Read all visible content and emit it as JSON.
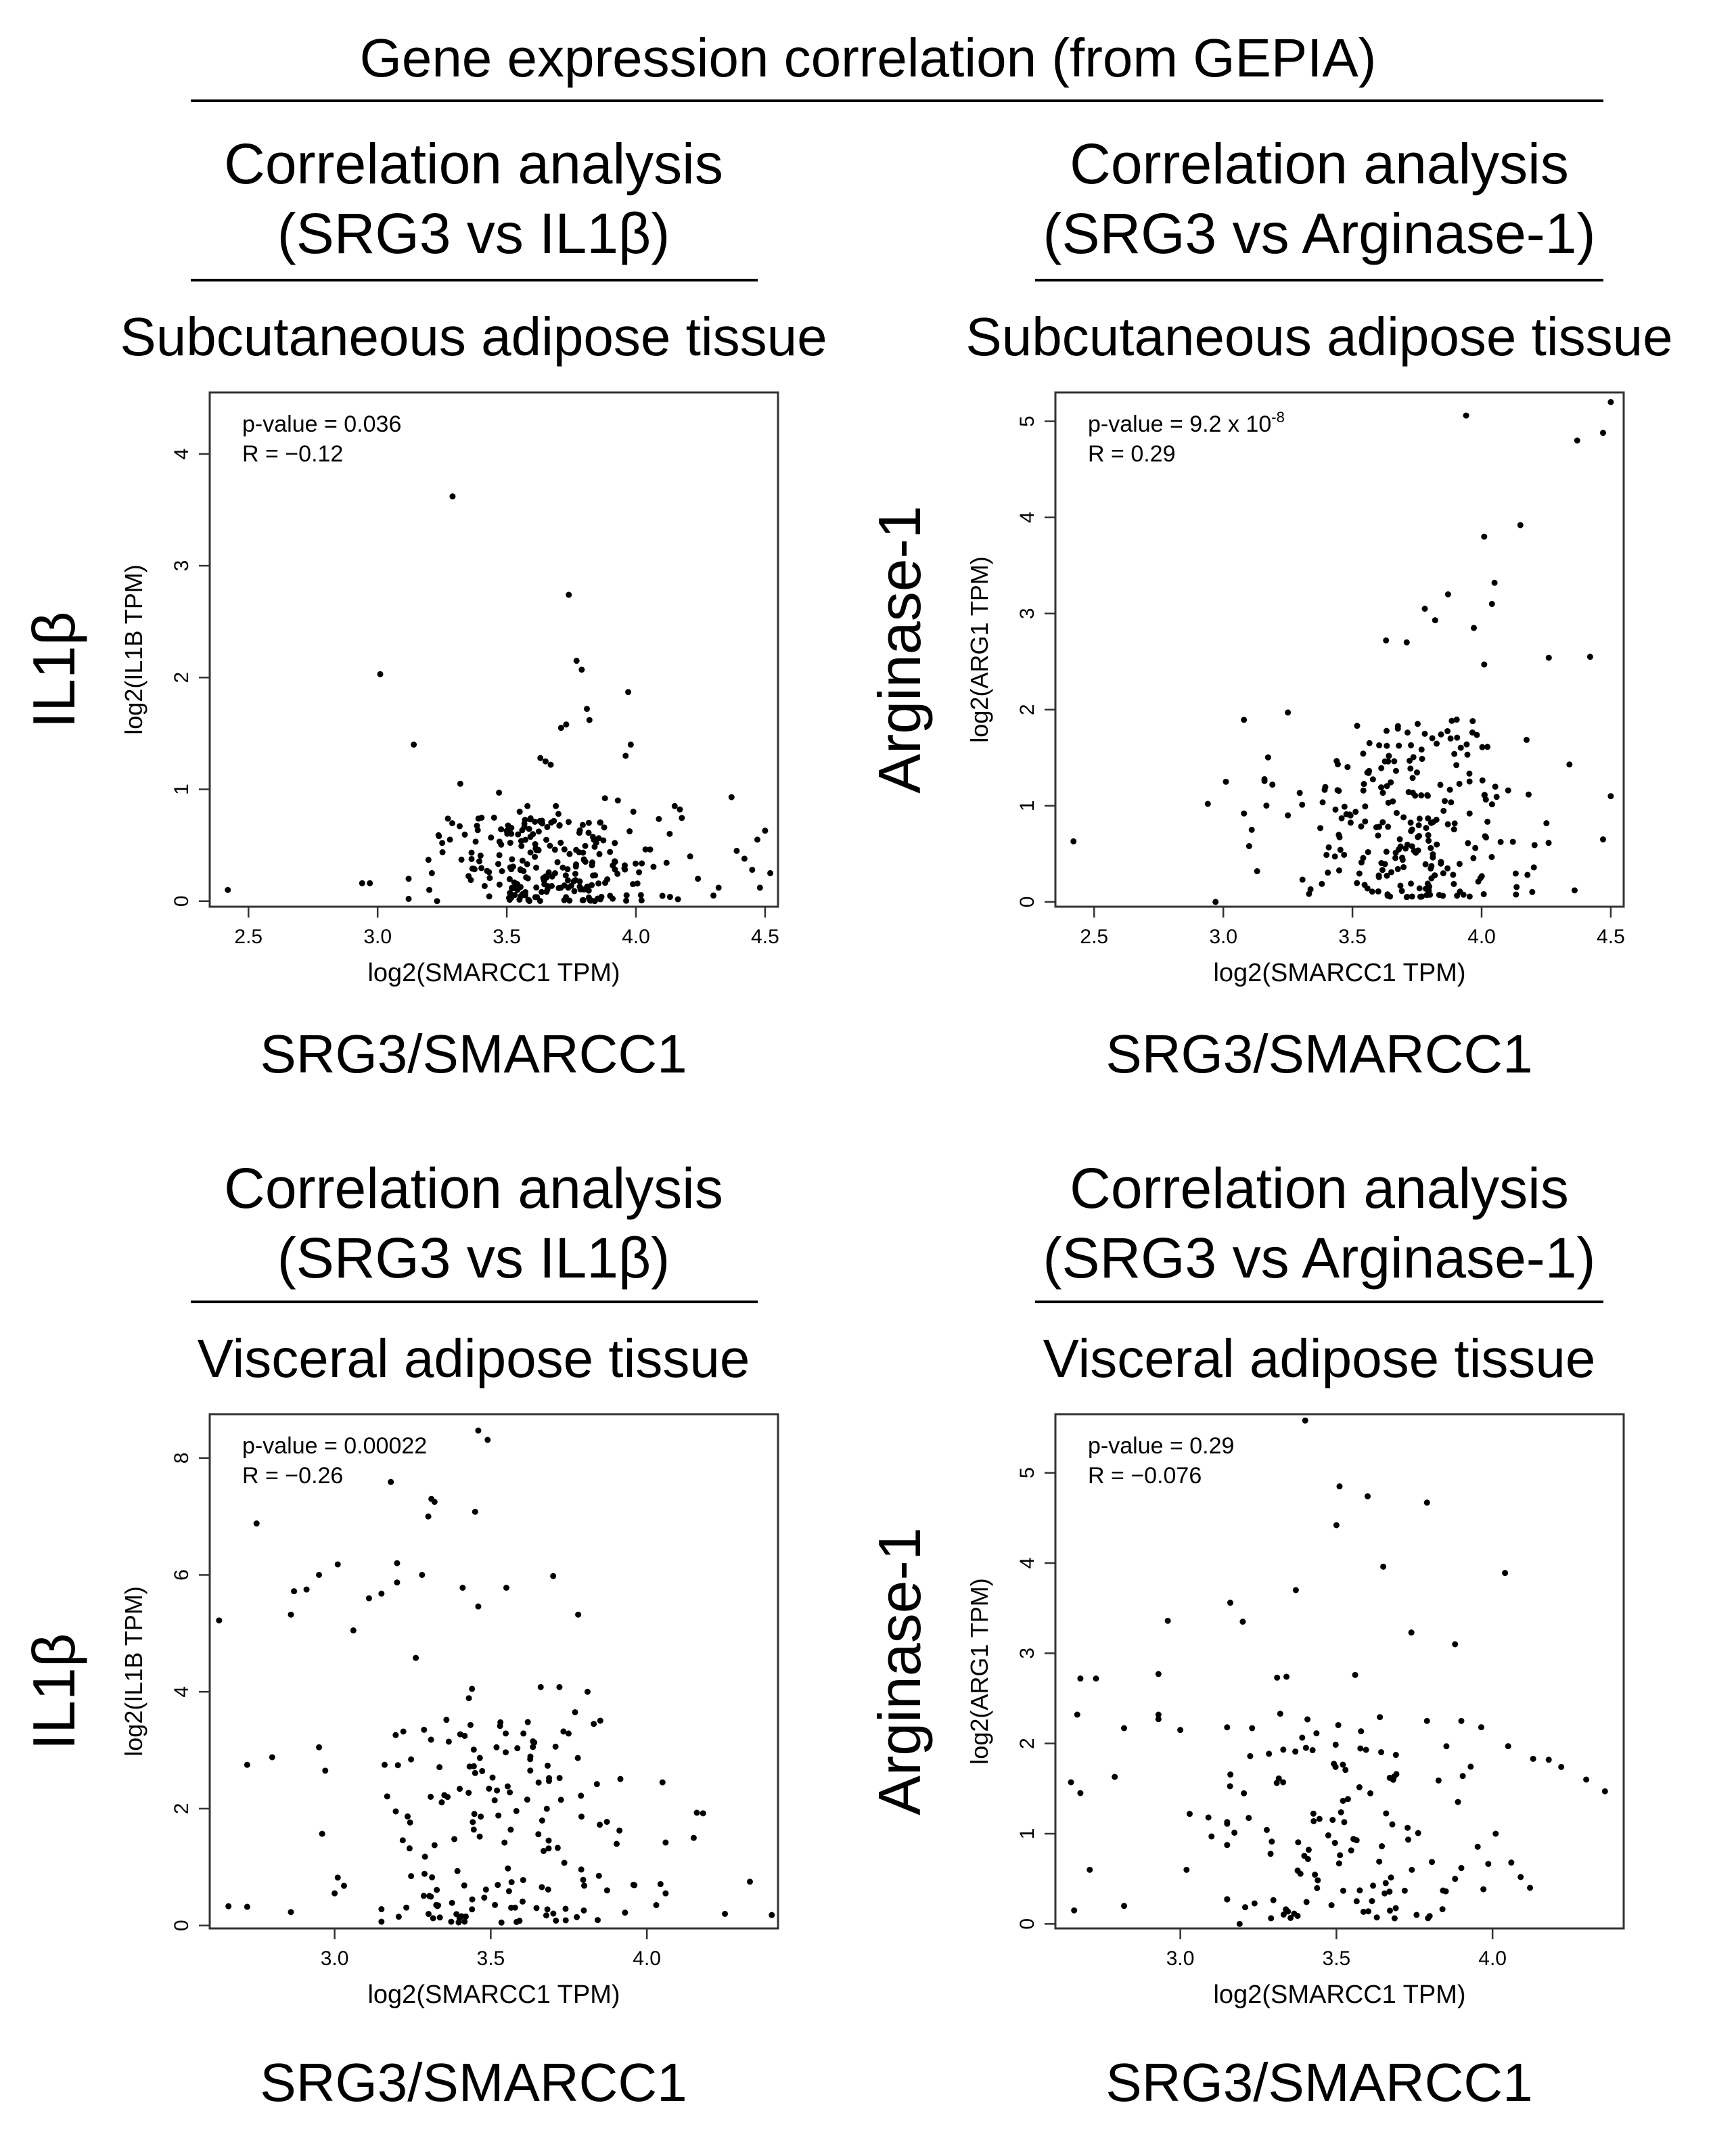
{
  "figure": {
    "title": "Gene expression correlation (from GEPIA)"
  },
  "panels": [
    {
      "analysis_title": "Correlation analysis",
      "comparison": "(SRG3 vs IL1β)",
      "tissue": "Subcutaneous adipose tissue",
      "gene_label": "IL1β",
      "x_gene_label": "SRG3/SMARCC1"
    },
    {
      "analysis_title": "Correlation analysis",
      "comparison": "(SRG3 vs Arginase-1)",
      "tissue": "Subcutaneous adipose tissue",
      "gene_label": "Arginase-1",
      "x_gene_label": "SRG3/SMARCC1"
    },
    {
      "analysis_title": "Correlation analysis",
      "comparison": "(SRG3 vs IL1β)",
      "tissue": "Visceral adipose tissue",
      "gene_label": "IL1β",
      "x_gene_label": "SRG3/SMARCC1"
    },
    {
      "analysis_title": "Correlation analysis",
      "comparison": "(SRG3 vs Arginase-1)",
      "tissue": "Visceral adipose tissue",
      "gene_label": "Arginase-1",
      "x_gene_label": "SRG3/SMARCC1"
    }
  ],
  "chart_data": [
    {
      "type": "scatter",
      "title": "Subcutaneous adipose tissue",
      "xlabel": "log2(SMARCC1 TPM)",
      "ylabel": "log2(IL1B TPM)",
      "xlim": [
        2.35,
        4.55
      ],
      "ylim": [
        -0.05,
        4.55
      ],
      "xticks": [
        "2.5",
        "3.0",
        "3.5",
        "4.0",
        "4.5"
      ],
      "xtick_values": [
        2.5,
        3.0,
        3.5,
        4.0,
        4.5
      ],
      "yticks": [
        "0",
        "1",
        "2",
        "3",
        "4"
      ],
      "ytick_values": [
        0,
        1,
        2,
        3,
        4
      ],
      "stats": {
        "pvalue_label": "p-value =",
        "pvalue": "0.036",
        "pvalue_exp": "",
        "r_label": "R =",
        "r": "−0.12"
      },
      "points_seed": 11,
      "points": [
        [
          2.42,
          0.1
        ],
        [
          2.94,
          0.16
        ],
        [
          2.97,
          0.16
        ],
        [
          3.01,
          2.03
        ],
        [
          3.12,
          0.02
        ],
        [
          3.12,
          0.2
        ],
        [
          3.14,
          1.4
        ],
        [
          3.29,
          3.62
        ],
        [
          3.32,
          1.05
        ],
        [
          3.28,
          0.55
        ],
        [
          3.25,
          0.52
        ],
        [
          3.74,
          2.74
        ],
        [
          3.77,
          2.15
        ],
        [
          3.79,
          2.07
        ],
        [
          3.81,
          1.72
        ],
        [
          3.82,
          1.62
        ],
        [
          3.97,
          1.87
        ],
        [
          3.98,
          1.4
        ],
        [
          3.96,
          1.3
        ],
        [
          3.73,
          1.58
        ],
        [
          3.71,
          1.55
        ],
        [
          3.63,
          1.28
        ],
        [
          3.67,
          1.22
        ],
        [
          3.65,
          1.25
        ],
        [
          3.69,
          0.85
        ],
        [
          3.7,
          0.78
        ],
        [
          3.55,
          0.8
        ],
        [
          3.47,
          0.97
        ],
        [
          3.88,
          0.92
        ],
        [
          3.93,
          0.9
        ],
        [
          3.99,
          0.8
        ],
        [
          4.15,
          0.85
        ],
        [
          4.17,
          0.82
        ],
        [
          4.37,
          0.93
        ],
        [
          4.5,
          0.63
        ],
        [
          4.47,
          0.55
        ],
        [
          4.45,
          0.28
        ],
        [
          4.52,
          0.25
        ],
        [
          4.48,
          0.12
        ],
        [
          4.42,
          0.38
        ],
        [
          4.39,
          0.45
        ],
        [
          4.21,
          0.4
        ],
        [
          4.24,
          0.2
        ],
        [
          4.3,
          0.05
        ],
        [
          4.32,
          0.12
        ],
        [
          3.23,
          0.0
        ],
        [
          3.21,
          0.25
        ],
        [
          3.2,
          0.1
        ],
        [
          3.58,
          0.85
        ]
      ],
      "random_cloud": {
        "n": 230,
        "x_center": 3.7,
        "x_sd": 0.2,
        "y_max": 0.75
      }
    },
    {
      "type": "scatter",
      "title": "Subcutaneous adipose tissue",
      "xlabel": "log2(SMARCC1 TPM)",
      "ylabel": "log2(ARG1 TPM)",
      "xlim": [
        2.35,
        4.55
      ],
      "ylim": [
        -0.05,
        5.3
      ],
      "xticks": [
        "2.5",
        "3.0",
        "3.5",
        "4.0",
        "4.5"
      ],
      "xtick_values": [
        2.5,
        3.0,
        3.5,
        4.0,
        4.5
      ],
      "yticks": [
        "0",
        "1",
        "2",
        "3",
        "4",
        "5"
      ],
      "ytick_values": [
        0,
        1,
        2,
        3,
        4,
        5
      ],
      "stats": {
        "pvalue_label": "p-value =",
        "pvalue": "9.2 x 10",
        "pvalue_exp": "-8",
        "r_label": "R =",
        "r": "0.29"
      },
      "points_seed": 23,
      "points": [
        [
          2.42,
          0.63
        ],
        [
          2.97,
          0.0
        ],
        [
          2.94,
          1.02
        ],
        [
          3.01,
          1.25
        ],
        [
          3.25,
          1.97
        ],
        [
          3.94,
          5.06
        ],
        [
          4.37,
          4.8
        ],
        [
          4.47,
          4.88
        ],
        [
          4.5,
          5.2
        ],
        [
          4.15,
          3.92
        ],
        [
          4.01,
          3.8
        ],
        [
          4.05,
          3.32
        ],
        [
          4.04,
          3.1
        ],
        [
          3.87,
          3.2
        ],
        [
          3.78,
          3.05
        ],
        [
          3.63,
          2.72
        ],
        [
          3.71,
          2.7
        ],
        [
          3.97,
          2.85
        ],
        [
          4.26,
          2.54
        ],
        [
          4.42,
          2.55
        ],
        [
          3.82,
          2.93
        ],
        [
          4.01,
          2.47
        ],
        [
          4.34,
          1.43
        ],
        [
          4.36,
          0.12
        ],
        [
          4.5,
          1.1
        ],
        [
          4.47,
          0.65
        ],
        [
          3.1,
          0.58
        ],
        [
          3.11,
          0.75
        ],
        [
          3.08,
          0.92
        ],
        [
          3.19,
          1.22
        ],
        [
          3.25,
          0.9
        ]
      ],
      "random_cloud": {
        "n": 240,
        "x_center": 3.72,
        "x_sd": 0.22,
        "y_min": 0.05,
        "y_max": 1.9
      }
    },
    {
      "type": "scatter",
      "title": "Visceral adipose tissue",
      "xlabel": "log2(SMARCC1 TPM)",
      "ylabel": "log2(IL1B TPM)",
      "xlim": [
        2.6,
        4.42
      ],
      "ylim": [
        -0.05,
        8.75
      ],
      "xticks": [
        "3.0",
        "3.5",
        "4.0"
      ],
      "xtick_values": [
        3.0,
        3.5,
        4.0
      ],
      "yticks": [
        "0",
        "2",
        "4",
        "6",
        "8"
      ],
      "ytick_values": [
        0,
        2,
        4,
        6,
        8
      ],
      "stats": {
        "pvalue_label": "p-value =",
        "pvalue": "0.00022",
        "pvalue_exp": "",
        "r_label": "R =",
        "r": "−0.26"
      },
      "points_seed": 37,
      "points": [
        [
          2.63,
          5.22
        ],
        [
          2.75,
          6.88
        ],
        [
          2.72,
          0.32
        ],
        [
          2.66,
          0.33
        ],
        [
          2.72,
          2.75
        ],
        [
          2.8,
          2.88
        ],
        [
          2.87,
          5.72
        ],
        [
          2.91,
          5.75
        ],
        [
          2.86,
          5.32
        ],
        [
          2.95,
          6.0
        ],
        [
          3.01,
          6.18
        ],
        [
          3.03,
          0.68
        ],
        [
          2.96,
          1.57
        ],
        [
          2.97,
          2.65
        ],
        [
          2.95,
          3.05
        ],
        [
          3.0,
          0.55
        ],
        [
          3.06,
          5.05
        ],
        [
          3.11,
          5.6
        ],
        [
          3.16,
          2.75
        ],
        [
          3.15,
          5.68
        ],
        [
          3.2,
          6.2
        ],
        [
          3.2,
          5.87
        ],
        [
          3.22,
          3.32
        ],
        [
          3.26,
          4.58
        ],
        [
          3.24,
          1.32
        ],
        [
          3.18,
          7.59
        ],
        [
          3.28,
          6.0
        ],
        [
          3.31,
          7.3
        ],
        [
          3.32,
          7.25
        ],
        [
          3.3,
          7.0
        ],
        [
          3.46,
          8.47
        ],
        [
          3.49,
          8.31
        ],
        [
          3.45,
          7.08
        ],
        [
          3.41,
          5.78
        ],
        [
          3.46,
          5.46
        ],
        [
          3.44,
          4.05
        ],
        [
          3.43,
          3.89
        ],
        [
          3.55,
          5.78
        ],
        [
          3.7,
          5.98
        ],
        [
          3.66,
          4.08
        ],
        [
          3.78,
          5.32
        ],
        [
          3.81,
          4.0
        ],
        [
          3.72,
          4.08
        ],
        [
          3.77,
          3.65
        ],
        [
          3.83,
          3.45
        ],
        [
          3.84,
          2.42
        ],
        [
          4.05,
          2.45
        ],
        [
          4.16,
          1.93
        ],
        [
          4.18,
          1.92
        ],
        [
          4.15,
          1.5
        ],
        [
          4.33,
          0.75
        ],
        [
          4.4,
          0.18
        ],
        [
          4.25,
          0.2
        ],
        [
          4.06,
          1.42
        ],
        [
          4.03,
          0.35
        ],
        [
          4.06,
          0.55
        ],
        [
          3.93,
          0.22
        ],
        [
          2.86,
          0.23
        ],
        [
          3.01,
          0.82
        ]
      ],
      "random_cloud": {
        "n": 150,
        "x_center": 3.55,
        "x_sd": 0.2,
        "y_min": 0.05,
        "y_max": 3.6
      }
    },
    {
      "type": "scatter",
      "title": "Visceral adipose tissue",
      "xlabel": "log2(SMARCC1 TPM)",
      "ylabel": "log2(ARG1 TPM)",
      "xlim": [
        2.6,
        4.42
      ],
      "ylim": [
        -0.05,
        5.65
      ],
      "xticks": [
        "3.0",
        "3.5",
        "4.0"
      ],
      "xtick_values": [
        3.0,
        3.5,
        4.0
      ],
      "yticks": [
        "0",
        "1",
        "2",
        "3",
        "4",
        "5"
      ],
      "ytick_values": [
        0,
        1,
        2,
        3,
        4,
        5
      ],
      "stats": {
        "pvalue_label": "p-value =",
        "pvalue": "0.29",
        "pvalue_exp": "",
        "r_label": "R =",
        "r": "−0.076"
      },
      "points_seed": 53,
      "points": [
        [
          2.67,
          2.32
        ],
        [
          2.68,
          2.72
        ],
        [
          2.65,
          1.57
        ],
        [
          2.68,
          1.45
        ],
        [
          2.73,
          2.72
        ],
        [
          2.66,
          0.15
        ],
        [
          2.71,
          0.6
        ],
        [
          2.79,
          1.63
        ],
        [
          2.82,
          2.17
        ],
        [
          2.82,
          0.2
        ],
        [
          2.93,
          2.32
        ],
        [
          2.93,
          2.77
        ],
        [
          2.93,
          2.27
        ],
        [
          2.96,
          3.36
        ],
        [
          3.0,
          2.15
        ],
        [
          3.03,
          1.22
        ],
        [
          3.02,
          0.6
        ],
        [
          3.1,
          0.97
        ],
        [
          3.09,
          1.18
        ],
        [
          3.16,
          3.56
        ],
        [
          3.23,
          2.17
        ],
        [
          3.2,
          3.35
        ],
        [
          3.31,
          2.73
        ],
        [
          3.34,
          2.74
        ],
        [
          3.32,
          2.33
        ],
        [
          3.37,
          3.7
        ],
        [
          3.4,
          5.58
        ],
        [
          3.51,
          4.85
        ],
        [
          3.5,
          4.42
        ],
        [
          3.56,
          2.76
        ],
        [
          3.6,
          4.74
        ],
        [
          3.65,
          3.96
        ],
        [
          3.79,
          4.67
        ],
        [
          3.74,
          3.23
        ],
        [
          3.79,
          2.25
        ],
        [
          3.88,
          3.1
        ],
        [
          3.9,
          2.25
        ],
        [
          4.04,
          3.89
        ],
        [
          4.05,
          1.97
        ],
        [
          4.01,
          1.0
        ],
        [
          4.13,
          1.83
        ],
        [
          4.18,
          1.82
        ],
        [
          4.22,
          1.74
        ],
        [
          4.3,
          1.6
        ],
        [
          4.36,
          1.47
        ],
        [
          4.12,
          0.4
        ],
        [
          4.09,
          0.52
        ],
        [
          4.06,
          0.68
        ],
        [
          3.9,
          0.62
        ],
        [
          3.88,
          0.5
        ],
        [
          3.19,
          0.0
        ]
      ],
      "random_cloud": {
        "n": 120,
        "x_center": 3.5,
        "x_sd": 0.24,
        "y_min": 0.05,
        "y_max": 2.3
      }
    }
  ]
}
